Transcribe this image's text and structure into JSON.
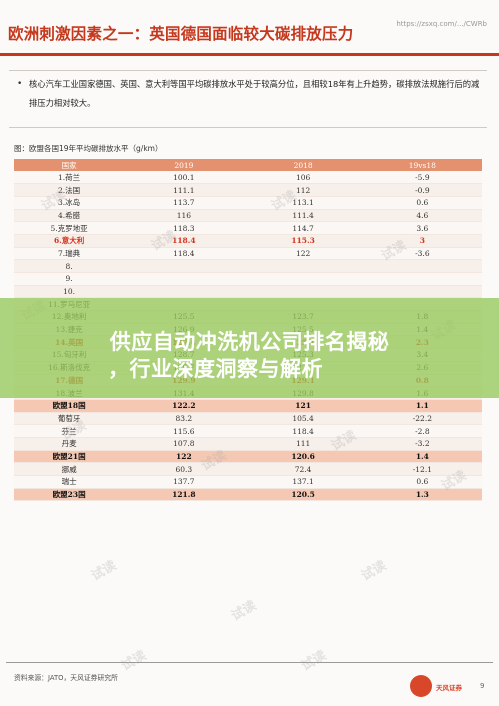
{
  "header": {
    "title": "欧洲刺激因素之一：英国德国面临较大碳排放压力",
    "url": "https://zsxq.com/.../CWRb"
  },
  "bullet": {
    "text": "核心汽车工业国家德国、英国、意大利等国平均碳排放水平处于较高分位，且相较18年有上升趋势，碳排放法规施行后的减排压力相对较大。"
  },
  "figure": {
    "title": "图：欧盟各国19年平均碳排放水平（g/km）",
    "columns": [
      "国家",
      "2019",
      "2018",
      "19vs18"
    ]
  },
  "table_rows": [
    {
      "name": "1.荷兰",
      "v2019": "100.1",
      "v2018": "106",
      "diff": "-5.9",
      "type": "normal"
    },
    {
      "name": "2.法国",
      "v2019": "111.1",
      "v2018": "112",
      "diff": "-0.9",
      "type": "normal"
    },
    {
      "name": "3.冰岛",
      "v2019": "113.7",
      "v2018": "113.1",
      "diff": "0.6",
      "type": "normal"
    },
    {
      "name": "4.希腊",
      "v2019": "116",
      "v2018": "111.4",
      "diff": "4.6",
      "type": "normal"
    },
    {
      "name": "5.克罗地亚",
      "v2019": "118.3",
      "v2018": "114.7",
      "diff": "3.6",
      "type": "normal"
    },
    {
      "name": "6.意大利",
      "v2019": "118.4",
      "v2018": "115.3",
      "diff": "3",
      "type": "hl"
    },
    {
      "name": "7.瑞典",
      "v2019": "118.4",
      "v2018": "122",
      "diff": "-3.6",
      "type": "normal"
    },
    {
      "name": "8.",
      "v2019": "",
      "v2018": "",
      "diff": "",
      "type": "normal"
    },
    {
      "name": "9.",
      "v2019": "",
      "v2018": "",
      "diff": "",
      "type": "normal"
    },
    {
      "name": "10.",
      "v2019": "",
      "v2018": "",
      "diff": "",
      "type": "normal"
    },
    {
      "name": "11.罗马尼亚",
      "v2019": "",
      "v2018": "",
      "diff": "",
      "type": "normal"
    },
    {
      "name": "12.奥地利",
      "v2019": "125.5",
      "v2018": "123.7",
      "diff": "1.8",
      "type": "normal"
    },
    {
      "name": "13.捷克",
      "v2019": "126.9",
      "v2018": "125.5",
      "diff": "1.4",
      "type": "normal"
    },
    {
      "name": "14.英国",
      "v2019": "127.4",
      "v2018": "125.1",
      "diff": "2.3",
      "type": "hl"
    },
    {
      "name": "15.匈牙利",
      "v2019": "128.7",
      "v2018": "125.3",
      "diff": "3.4",
      "type": "normal"
    },
    {
      "name": "16.斯洛伐克",
      "v2019": "129.7",
      "v2018": "127.1",
      "diff": "2.6",
      "type": "normal"
    },
    {
      "name": "17.德国",
      "v2019": "129.9",
      "v2018": "129.1",
      "diff": "0.8",
      "type": "hl"
    },
    {
      "name": "18.波兰",
      "v2019": "131.4",
      "v2018": "129.8",
      "diff": "1.6",
      "type": "normal"
    },
    {
      "name": "欧盟18国",
      "v2019": "122.2",
      "v2018": "121",
      "diff": "1.1",
      "type": "sum"
    },
    {
      "name": "葡萄牙",
      "v2019": "83.2",
      "v2018": "105.4",
      "diff": "-22.2",
      "type": "normal"
    },
    {
      "name": "芬兰",
      "v2019": "115.6",
      "v2018": "118.4",
      "diff": "-2.8",
      "type": "normal"
    },
    {
      "name": "丹麦",
      "v2019": "107.8",
      "v2018": "111",
      "diff": "-3.2",
      "type": "normal"
    },
    {
      "name": "欧盟21国",
      "v2019": "122",
      "v2018": "120.6",
      "diff": "1.4",
      "type": "sum"
    },
    {
      "name": "挪威",
      "v2019": "60.3",
      "v2018": "72.4",
      "diff": "-12.1",
      "type": "normal"
    },
    {
      "name": "瑞士",
      "v2019": "137.7",
      "v2018": "137.1",
      "diff": "0.6",
      "type": "normal"
    },
    {
      "name": "欧盟23国",
      "v2019": "121.8",
      "v2018": "120.5",
      "diff": "1.3",
      "type": "sum"
    }
  ],
  "overlay": {
    "line1": "供应自动冲洗机公司排名揭秘",
    "line2": "，行业深度洞察与解析"
  },
  "footer": {
    "source": "资料来源：JATO，天风证券研究所",
    "logo_text": "天风证券",
    "page_number": "9"
  },
  "watermark_text": "试读"
}
